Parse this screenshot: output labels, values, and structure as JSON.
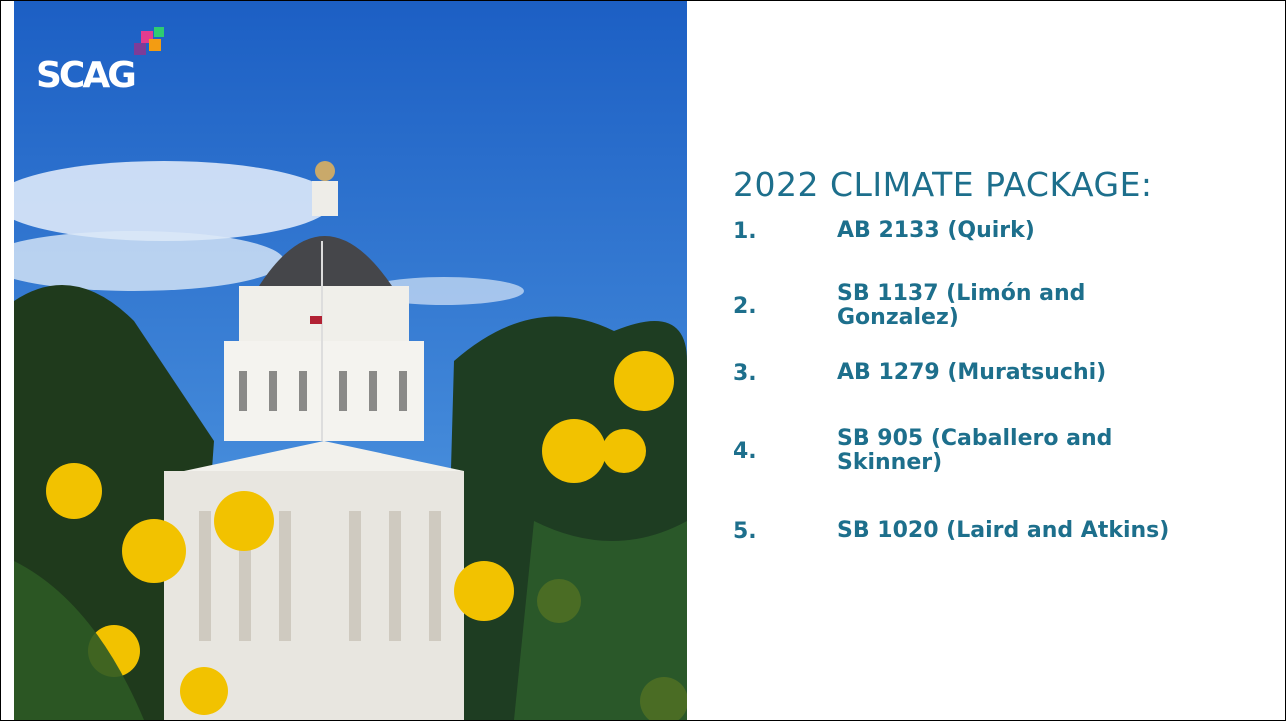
{
  "logo": "SCAG",
  "title": "2022 CLIMATE PACKAGE:",
  "items": [
    {
      "number": "1.",
      "lines": [
        "AB 2133 (Quirk)"
      ]
    },
    {
      "number": "2.",
      "lines": [
        "SB 1137 (Limón and",
        "Gonzalez)"
      ]
    },
    {
      "number": "3.",
      "lines": [
        "AB 1279 (Muratsuchi)"
      ]
    },
    {
      "number": "4.",
      "lines": [
        "SB 905 (Caballero and",
        "Skinner)"
      ]
    },
    {
      "number": "5.",
      "lines": [
        "SB 1020 (Laird and Atkins)"
      ]
    }
  ]
}
